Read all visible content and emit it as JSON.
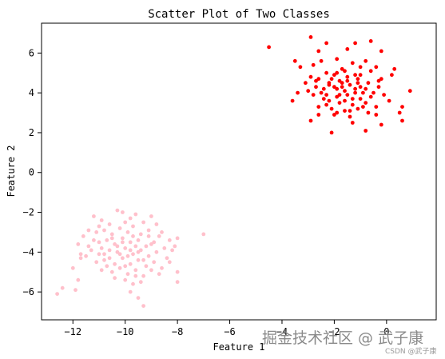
{
  "chart_data": {
    "type": "scatter",
    "title": "Scatter Plot of Two Classes",
    "xlabel": "Feature 1",
    "ylabel": "Feature 2",
    "xlim": [
      -13.2,
      1.9
    ],
    "ylim": [
      -7.4,
      7.5
    ],
    "xticks": [
      -12,
      -10,
      -8,
      -6,
      -4,
      -2,
      0
    ],
    "yticks": [
      -6,
      -4,
      -2,
      0,
      2,
      4,
      6
    ],
    "grid": false,
    "series": [
      {
        "color": "#ff0000",
        "points": [
          [
            -2.9,
            6.8
          ],
          [
            -2.3,
            6.5
          ],
          [
            -1.2,
            6.5
          ],
          [
            -0.6,
            6.6
          ],
          [
            -4.5,
            6.3
          ],
          [
            -1.5,
            6.2
          ],
          [
            -2.6,
            6.1
          ],
          [
            -0.2,
            6.1
          ],
          [
            -3.5,
            5.6
          ],
          [
            -1.9,
            5.7
          ],
          [
            -1.3,
            5.5
          ],
          [
            -0.8,
            5.6
          ],
          [
            -3.3,
            5.3
          ],
          [
            -2.8,
            5.4
          ],
          [
            -1.7,
            5.2
          ],
          [
            -0.4,
            5.3
          ],
          [
            0.3,
            5.2
          ],
          [
            -2.3,
            5.0
          ],
          [
            -1.9,
            5.0
          ],
          [
            -1.0,
            4.9
          ],
          [
            -2.9,
            4.8
          ],
          [
            -2.6,
            4.7
          ],
          [
            -1.5,
            4.8
          ],
          [
            -1.1,
            4.7
          ],
          [
            -0.2,
            4.7
          ],
          [
            0.2,
            4.9
          ],
          [
            -3.1,
            4.5
          ],
          [
            -2.2,
            4.5
          ],
          [
            -1.8,
            4.6
          ],
          [
            -1.4,
            4.4
          ],
          [
            -0.7,
            4.5
          ],
          [
            -0.3,
            4.3
          ],
          [
            -2.7,
            4.3
          ],
          [
            -2.4,
            4.2
          ],
          [
            -2.0,
            4.3
          ],
          [
            -1.6,
            4.1
          ],
          [
            -1.2,
            4.2
          ],
          [
            -0.9,
            4.0
          ],
          [
            -3.4,
            4.0
          ],
          [
            -2.8,
            3.9
          ],
          [
            -2.3,
            3.9
          ],
          [
            -1.9,
            3.8
          ],
          [
            -1.5,
            3.9
          ],
          [
            -1.0,
            3.7
          ],
          [
            -0.6,
            3.8
          ],
          [
            -0.1,
            3.9
          ],
          [
            0.9,
            4.1
          ],
          [
            -2.2,
            3.6
          ],
          [
            -1.8,
            3.5
          ],
          [
            -1.3,
            3.4
          ],
          [
            -0.8,
            3.5
          ],
          [
            -2.6,
            3.3
          ],
          [
            -2.1,
            3.2
          ],
          [
            -1.6,
            3.1
          ],
          [
            -1.1,
            3.2
          ],
          [
            -0.4,
            3.3
          ],
          [
            0.6,
            3.3
          ],
          [
            -2.0,
            2.9
          ],
          [
            -1.4,
            2.8
          ],
          [
            -0.7,
            3.0
          ],
          [
            0.5,
            3.0
          ],
          [
            -2.9,
            2.6
          ],
          [
            -1.3,
            2.5
          ],
          [
            -0.2,
            2.4
          ],
          [
            0.6,
            2.6
          ],
          [
            -2.1,
            2.0
          ],
          [
            -0.8,
            2.1
          ],
          [
            -1.0,
            4.3
          ],
          [
            -1.7,
            4.5
          ],
          [
            -2.5,
            4.0
          ],
          [
            -1.3,
            3.7
          ],
          [
            -0.5,
            4.0
          ],
          [
            -2.0,
            4.9
          ],
          [
            -1.6,
            5.1
          ],
          [
            -2.4,
            3.7
          ],
          [
            -1.1,
            4.5
          ],
          [
            -1.9,
            4.2
          ],
          [
            -1.5,
            4.6
          ],
          [
            -0.9,
            3.3
          ],
          [
            -2.2,
            4.4
          ],
          [
            -1.8,
            3.9
          ],
          [
            -1.2,
            4.0
          ],
          [
            -0.3,
            4.6
          ],
          [
            -2.7,
            4.6
          ],
          [
            -3.0,
            4.1
          ],
          [
            -0.6,
            5.1
          ],
          [
            -1.4,
            3.1
          ],
          [
            -2.3,
            3.4
          ],
          [
            0.1,
            3.6
          ],
          [
            -1.7,
            4.3
          ],
          [
            -2.1,
            4.7
          ],
          [
            -1.0,
            5.3
          ],
          [
            -2.5,
            5.6
          ],
          [
            -0.8,
            4.2
          ],
          [
            -1.6,
            3.6
          ],
          [
            -3.6,
            3.6
          ],
          [
            -1.2,
            4.9
          ],
          [
            -2.6,
            2.9
          ],
          [
            -0.4,
            2.9
          ],
          [
            -1.9,
            3.0
          ]
        ]
      },
      {
        "color": "#ffc0cb",
        "points": [
          [
            -12.6,
            -6.1
          ],
          [
            -12.4,
            -5.8
          ],
          [
            -11.9,
            -5.9
          ],
          [
            -11.8,
            -5.4
          ],
          [
            -12.0,
            -4.8
          ],
          [
            -11.7,
            -4.3
          ],
          [
            -11.8,
            -3.6
          ],
          [
            -11.6,
            -3.2
          ],
          [
            -11.4,
            -2.9
          ],
          [
            -11.2,
            -2.2
          ],
          [
            -10.9,
            -2.4
          ],
          [
            -10.6,
            -2.6
          ],
          [
            -10.3,
            -1.9
          ],
          [
            -10.1,
            -2.0
          ],
          [
            -9.8,
            -2.3
          ],
          [
            -9.6,
            -2.1
          ],
          [
            -9.3,
            -2.5
          ],
          [
            -9.0,
            -2.2
          ],
          [
            -8.8,
            -2.6
          ],
          [
            -11.1,
            -3.0
          ],
          [
            -10.8,
            -2.9
          ],
          [
            -10.5,
            -3.1
          ],
          [
            -10.2,
            -2.8
          ],
          [
            -9.9,
            -3.0
          ],
          [
            -9.7,
            -2.7
          ],
          [
            -9.4,
            -3.1
          ],
          [
            -9.1,
            -2.9
          ],
          [
            -8.7,
            -3.2
          ],
          [
            -8.3,
            -3.4
          ],
          [
            -8.0,
            -3.3
          ],
          [
            -11.0,
            -3.5
          ],
          [
            -10.7,
            -3.4
          ],
          [
            -10.4,
            -3.6
          ],
          [
            -10.1,
            -3.3
          ],
          [
            -9.8,
            -3.5
          ],
          [
            -9.5,
            -3.4
          ],
          [
            -9.2,
            -3.7
          ],
          [
            -8.9,
            -3.5
          ],
          [
            -8.5,
            -3.8
          ],
          [
            -8.1,
            -3.7
          ],
          [
            -11.3,
            -3.9
          ],
          [
            -11.0,
            -4.1
          ],
          [
            -10.6,
            -3.9
          ],
          [
            -10.3,
            -4.0
          ],
          [
            -10.0,
            -3.8
          ],
          [
            -9.7,
            -4.1
          ],
          [
            -9.4,
            -3.9
          ],
          [
            -9.1,
            -4.2
          ],
          [
            -8.8,
            -4.0
          ],
          [
            -8.4,
            -4.3
          ],
          [
            -11.5,
            -4.2
          ],
          [
            -11.1,
            -4.5
          ],
          [
            -10.8,
            -4.4
          ],
          [
            -10.4,
            -4.6
          ],
          [
            -10.1,
            -4.3
          ],
          [
            -9.8,
            -4.6
          ],
          [
            -9.5,
            -4.4
          ],
          [
            -9.2,
            -4.7
          ],
          [
            -8.9,
            -4.5
          ],
          [
            -8.6,
            -4.8
          ],
          [
            -10.9,
            -4.9
          ],
          [
            -10.5,
            -5.0
          ],
          [
            -10.2,
            -4.8
          ],
          [
            -9.9,
            -5.1
          ],
          [
            -9.6,
            -4.9
          ],
          [
            -9.3,
            -5.2
          ],
          [
            -8.0,
            -5.0
          ],
          [
            -10.0,
            -5.4
          ],
          [
            -9.7,
            -5.6
          ],
          [
            -9.4,
            -5.5
          ],
          [
            -9.8,
            -6.0
          ],
          [
            -9.5,
            -6.3
          ],
          [
            -9.3,
            -6.7
          ],
          [
            -8.0,
            -5.5
          ],
          [
            -7.0,
            -3.1
          ],
          [
            -11.4,
            -3.7
          ],
          [
            -10.3,
            -3.7
          ],
          [
            -9.6,
            -3.7
          ],
          [
            -10.6,
            -4.3
          ],
          [
            -9.9,
            -4.2
          ],
          [
            -9.3,
            -4.4
          ],
          [
            -10.0,
            -4.7
          ],
          [
            -10.8,
            -4.1
          ],
          [
            -9.0,
            -3.6
          ],
          [
            -11.7,
            -4.1
          ],
          [
            -10.5,
            -3.3
          ],
          [
            -9.7,
            -3.2
          ],
          [
            -8.6,
            -3.0
          ],
          [
            -10.2,
            -4.1
          ],
          [
            -9.5,
            -4.0
          ],
          [
            -11.2,
            -3.4
          ],
          [
            -10.9,
            -3.8
          ],
          [
            -8.3,
            -4.5
          ],
          [
            -9.0,
            -4.9
          ],
          [
            -10.7,
            -4.7
          ],
          [
            -9.6,
            -5.2
          ],
          [
            -10.4,
            -5.3
          ],
          [
            -8.7,
            -5.1
          ],
          [
            -11.0,
            -2.7
          ],
          [
            -10.0,
            -2.5
          ],
          [
            -9.1,
            -3.2
          ],
          [
            -8.2,
            -3.9
          ],
          [
            -10.1,
            -3.5
          ],
          [
            -9.8,
            -3.9
          ]
        ]
      }
    ]
  },
  "watermark": {
    "main": "掘金技术社区 @ 武子康",
    "sub": "CSDN @武子康"
  }
}
